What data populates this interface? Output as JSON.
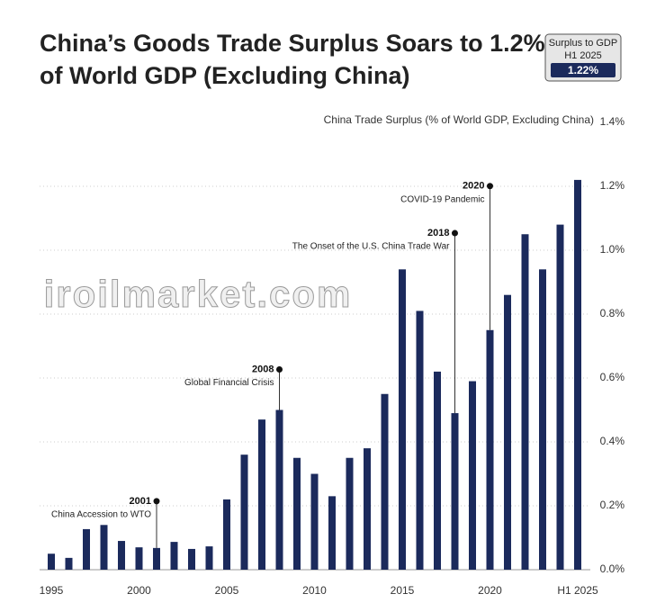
{
  "chart_data": {
    "type": "bar",
    "title": [
      "China’s Goods Trade Surplus Soars to 1.2%",
      "of World GDP (Excluding China)"
    ],
    "y_axis_title": "China Trade Surplus (% of World GDP, Excluding China)",
    "badge": {
      "title": "Surplus to GDP",
      "period": "H1 2025",
      "value": "1.22%"
    },
    "watermark": "iroilmarket.com",
    "categories": [
      "1995",
      null,
      null,
      null,
      null,
      "2000",
      null,
      null,
      null,
      null,
      "2005",
      null,
      null,
      null,
      null,
      "2010",
      null,
      null,
      null,
      null,
      "2015",
      null,
      null,
      null,
      null,
      "2020",
      null,
      null,
      null,
      null,
      "H1 2025"
    ],
    "values": [
      0.05,
      0.037,
      0.127,
      0.14,
      0.09,
      0.07,
      0.068,
      0.087,
      0.065,
      0.073,
      0.22,
      0.36,
      0.47,
      0.5,
      0.35,
      0.3,
      0.23,
      0.35,
      0.38,
      0.55,
      0.94,
      0.81,
      0.62,
      0.49,
      0.59,
      0.75,
      0.86,
      1.05,
      0.94,
      1.08,
      1.22
    ],
    "color": "#1b2a5c",
    "ylim": [
      0,
      1.4
    ],
    "yticks": [
      {
        "value": 0,
        "label": "0.0%"
      },
      {
        "value": 0.2,
        "label": "0.2%"
      },
      {
        "value": 0.4,
        "label": "0.4%"
      },
      {
        "value": 0.6,
        "label": "0.6%"
      },
      {
        "value": 0.8,
        "label": "0.8%"
      },
      {
        "value": 1.0,
        "label": "1.0%"
      },
      {
        "value": 1.2,
        "label": "1.2%"
      },
      {
        "value": 1.4,
        "label": "1.4%"
      }
    ],
    "grid": true,
    "annotations": [
      {
        "year": 2001,
        "text": "China Accession to WTO"
      },
      {
        "year": 2008,
        "text": "Global Financial Crisis"
      },
      {
        "year": 2018,
        "text": "The Onset of the U.S. China Trade War"
      },
      {
        "year": 2020,
        "text": "COVID-19 Pandemic"
      }
    ]
  }
}
